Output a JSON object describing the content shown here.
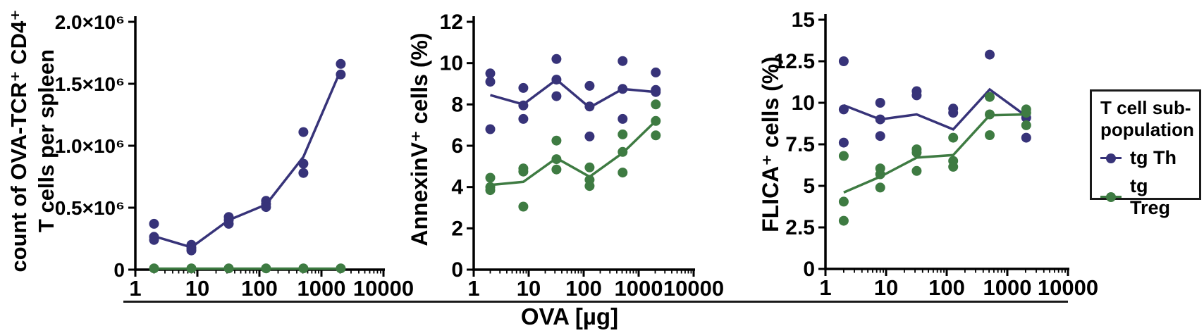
{
  "figure": {
    "x_axis_label": "OVA [µg]",
    "x_ticks": [
      1,
      10,
      100,
      1000,
      10000
    ],
    "x_tick_labels": [
      "1",
      "10",
      "100",
      "1000",
      "10000"
    ]
  },
  "legend": {
    "title_lines": [
      "T cell sub-",
      "population"
    ],
    "entries": [
      {
        "label": "tg Th",
        "color": "#373379"
      },
      {
        "label": "tg Treg",
        "color": "#3e7b42"
      }
    ]
  },
  "colors": {
    "th": "#373379",
    "treg": "#3e7b42",
    "axis": "#000000",
    "background": "#ffffff"
  },
  "chart_data": [
    {
      "type": "scatter",
      "y_label_lines": [
        "count of OVA-TCR⁺ CD4⁺",
        "T cells per spleen"
      ],
      "x_scale": "log",
      "xlim": [
        1,
        10000
      ],
      "ylim": [
        0,
        2000000
      ],
      "y_ticks": [
        {
          "value": 0,
          "label": "0"
        },
        {
          "value": 500000,
          "label": "0.5×10⁶"
        },
        {
          "value": 1000000,
          "label": "1.0×10⁶"
        },
        {
          "value": 1500000,
          "label": "1.5×10⁶"
        },
        {
          "value": 2000000,
          "label": "2.0×10⁶"
        }
      ],
      "series": [
        {
          "name": "tg Th",
          "color": "#373379",
          "points": [
            [
              2,
              370000
            ],
            [
              2,
              265000
            ],
            [
              2,
              240000
            ],
            [
              8,
              200000
            ],
            [
              8,
              175000
            ],
            [
              8,
              155000
            ],
            [
              32,
              425000
            ],
            [
              32,
              400000
            ],
            [
              32,
              370000
            ],
            [
              128,
              555000
            ],
            [
              128,
              530000
            ],
            [
              128,
              505000
            ],
            [
              512,
              1110000
            ],
            [
              512,
              855000
            ],
            [
              512,
              780000
            ],
            [
              2048,
              1660000
            ],
            [
              2048,
              1575000
            ]
          ],
          "mean_line": [
            [
              2,
              270000
            ],
            [
              8,
              180000
            ],
            [
              32,
              400000
            ],
            [
              128,
              525000
            ],
            [
              512,
              910000
            ],
            [
              2048,
              1610000
            ]
          ]
        },
        {
          "name": "tg Treg",
          "color": "#3e7b42",
          "points": [
            [
              2,
              10000
            ],
            [
              8,
              10000
            ],
            [
              32,
              10000
            ],
            [
              128,
              10000
            ],
            [
              512,
              10000
            ],
            [
              2048,
              10000
            ]
          ],
          "mean_line": [
            [
              2,
              8000
            ],
            [
              8,
              8000
            ],
            [
              32,
              8000
            ],
            [
              128,
              8000
            ],
            [
              512,
              8000
            ],
            [
              2048,
              8000
            ]
          ]
        }
      ]
    },
    {
      "type": "scatter",
      "y_label_lines": [
        "AnnexinV⁺ cells (%)"
      ],
      "x_scale": "log",
      "xlim": [
        1,
        10000
      ],
      "ylim": [
        0,
        12
      ],
      "y_ticks": [
        {
          "value": 0,
          "label": "0"
        },
        {
          "value": 2,
          "label": "2"
        },
        {
          "value": 4,
          "label": "4"
        },
        {
          "value": 6,
          "label": "6"
        },
        {
          "value": 8,
          "label": "8"
        },
        {
          "value": 10,
          "label": "10"
        },
        {
          "value": 12,
          "label": "12"
        }
      ],
      "series": [
        {
          "name": "tg Th",
          "color": "#373379",
          "points": [
            [
              2,
              9.5
            ],
            [
              2,
              9.1
            ],
            [
              2,
              6.8
            ],
            [
              8,
              8.8
            ],
            [
              8,
              7.95
            ],
            [
              8,
              7.3
            ],
            [
              32,
              10.2
            ],
            [
              32,
              9.2
            ],
            [
              32,
              8.4
            ],
            [
              128,
              8.9
            ],
            [
              128,
              7.9
            ],
            [
              128,
              6.45
            ],
            [
              512,
              10.1
            ],
            [
              512,
              8.75
            ],
            [
              512,
              7.3
            ],
            [
              2048,
              9.55
            ],
            [
              2048,
              8.7
            ],
            [
              2048,
              8.6
            ]
          ],
          "mean_line": [
            [
              2,
              8.45
            ],
            [
              8,
              8.0
            ],
            [
              32,
              9.2
            ],
            [
              128,
              7.85
            ],
            [
              512,
              8.75
            ],
            [
              2048,
              8.6
            ]
          ]
        },
        {
          "name": "tg Treg",
          "color": "#3e7b42",
          "points": [
            [
              2,
              4.45
            ],
            [
              2,
              4.0
            ],
            [
              2,
              3.85
            ],
            [
              8,
              4.9
            ],
            [
              8,
              4.75
            ],
            [
              8,
              3.05
            ],
            [
              32,
              6.25
            ],
            [
              32,
              5.35
            ],
            [
              32,
              4.85
            ],
            [
              128,
              4.95
            ],
            [
              128,
              4.35
            ],
            [
              128,
              4.05
            ],
            [
              512,
              6.55
            ],
            [
              512,
              5.7
            ],
            [
              512,
              4.7
            ],
            [
              2048,
              8.0
            ],
            [
              2048,
              7.2
            ],
            [
              2048,
              6.5
            ]
          ],
          "mean_line": [
            [
              2,
              4.1
            ],
            [
              8,
              4.25
            ],
            [
              32,
              5.4
            ],
            [
              128,
              4.5
            ],
            [
              512,
              5.65
            ],
            [
              2048,
              7.2
            ]
          ]
        }
      ]
    },
    {
      "type": "scatter",
      "y_label_lines": [
        "FLICA⁺ cells (%)"
      ],
      "x_scale": "log",
      "xlim": [
        1,
        10000
      ],
      "ylim": [
        0,
        15
      ],
      "y_ticks": [
        {
          "value": 0,
          "label": "0"
        },
        {
          "value": 2.5,
          "label": "2.5"
        },
        {
          "value": 5,
          "label": "5"
        },
        {
          "value": 7.5,
          "label": "7.5"
        },
        {
          "value": 10,
          "label": "10"
        },
        {
          "value": 12.5,
          "label": "12.5"
        },
        {
          "value": 15,
          "label": "15"
        }
      ],
      "series": [
        {
          "name": "tg Th",
          "color": "#373379",
          "points": [
            [
              2,
              12.5
            ],
            [
              2,
              9.6
            ],
            [
              2,
              7.6
            ],
            [
              8,
              10.0
            ],
            [
              8,
              9.0
            ],
            [
              8,
              8.0
            ],
            [
              32,
              10.7
            ],
            [
              32,
              10.45
            ],
            [
              128,
              9.65
            ],
            [
              128,
              9.4
            ],
            [
              512,
              12.9
            ],
            [
              2048,
              9.1
            ],
            [
              2048,
              7.9
            ]
          ],
          "mean_line": [
            [
              2,
              9.85
            ],
            [
              8,
              9.0
            ],
            [
              32,
              9.3
            ],
            [
              128,
              8.4
            ],
            [
              512,
              10.8
            ],
            [
              2048,
              9.2
            ]
          ]
        },
        {
          "name": "tg Treg",
          "color": "#3e7b42",
          "points": [
            [
              2,
              6.8
            ],
            [
              2,
              4.05
            ],
            [
              2,
              2.9
            ],
            [
              8,
              6.05
            ],
            [
              8,
              5.7
            ],
            [
              8,
              4.9
            ],
            [
              32,
              7.2
            ],
            [
              32,
              7.0
            ],
            [
              32,
              5.9
            ],
            [
              128,
              7.9
            ],
            [
              128,
              6.5
            ],
            [
              128,
              6.15
            ],
            [
              512,
              10.35
            ],
            [
              512,
              9.3
            ],
            [
              512,
              8.05
            ],
            [
              2048,
              9.6
            ],
            [
              2048,
              9.4
            ],
            [
              2048,
              8.65
            ]
          ],
          "mean_line": [
            [
              2,
              4.6
            ],
            [
              8,
              5.55
            ],
            [
              32,
              6.7
            ],
            [
              128,
              6.85
            ],
            [
              512,
              9.25
            ],
            [
              2048,
              9.3
            ]
          ]
        }
      ]
    }
  ]
}
